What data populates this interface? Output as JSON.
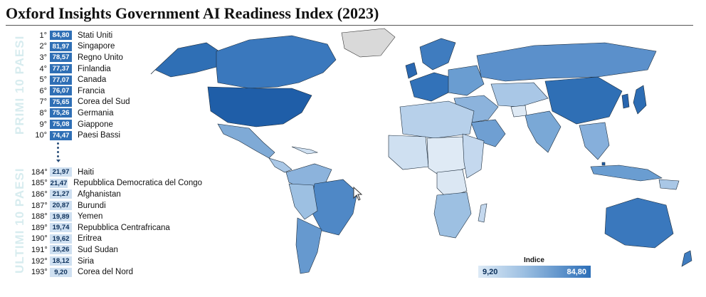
{
  "title": "Oxford Insights Government AI Readiness Index (2023)",
  "labels": {
    "top": "PRIMI 10 PAESI",
    "bottom": "ULTIMI 10 PAESI"
  },
  "top_ranks": [
    {
      "rank": "1°",
      "score": "84,80",
      "country": "Stati Uniti"
    },
    {
      "rank": "2°",
      "score": "81,97",
      "country": "Singapore"
    },
    {
      "rank": "3°",
      "score": "78,57",
      "country": "Regno Unito"
    },
    {
      "rank": "4°",
      "score": "77,37",
      "country": "Finlandia"
    },
    {
      "rank": "5°",
      "score": "77,07",
      "country": "Canada"
    },
    {
      "rank": "6°",
      "score": "76,07",
      "country": "Francia"
    },
    {
      "rank": "7°",
      "score": "75,65",
      "country": "Corea del Sud"
    },
    {
      "rank": "8°",
      "score": "75,26",
      "country": "Germania"
    },
    {
      "rank": "9°",
      "score": "75,08",
      "country": "Giappone"
    },
    {
      "rank": "10°",
      "score": "74,47",
      "country": "Paesi Bassi"
    }
  ],
  "bottom_ranks": [
    {
      "rank": "184°",
      "score": "21,97",
      "country": "Haiti"
    },
    {
      "rank": "185°",
      "score": "21,47",
      "country": "Repubblica Democratica del Congo"
    },
    {
      "rank": "186°",
      "score": "21,27",
      "country": "Afghanistan"
    },
    {
      "rank": "187°",
      "score": "20,87",
      "country": "Burundi"
    },
    {
      "rank": "188°",
      "score": "19,89",
      "country": "Yemen"
    },
    {
      "rank": "189°",
      "score": "19,74",
      "country": "Repubblica Centrafricana"
    },
    {
      "rank": "190°",
      "score": "19,62",
      "country": "Eritrea"
    },
    {
      "rank": "191°",
      "score": "18,26",
      "country": "Sud Sudan"
    },
    {
      "rank": "192°",
      "score": "18,12",
      "country": "Siria"
    },
    {
      "rank": "193°",
      "score": "9,20",
      "country": "Corea del Nord"
    }
  ],
  "legend": {
    "title": "Indice",
    "min": "9,20",
    "max": "84,80"
  },
  "colors": {
    "top_score_bg": "#2f6fb5",
    "bottom_score_bg": "#cfe0f1",
    "label_tint": "#d7ecef"
  }
}
